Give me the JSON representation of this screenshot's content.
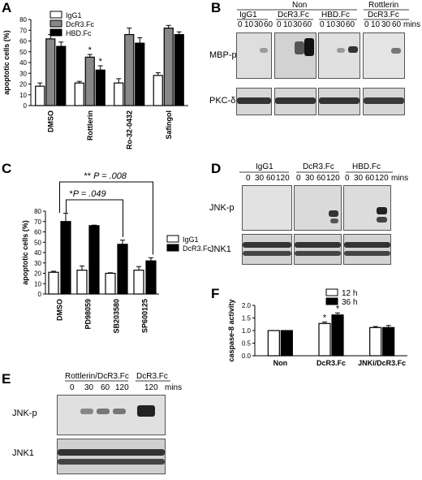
{
  "panels": {
    "A": {
      "label": "A",
      "ylabel": "apoptotic cells (%)",
      "legend": [
        "IgG1",
        "DcR3.Fc",
        "HBD.Fc"
      ],
      "yticks": [
        "0",
        "10",
        "20",
        "30",
        "40",
        "50",
        "60",
        "70",
        "80"
      ],
      "categories": [
        "DMSO",
        "Rottlerin",
        "Ro-32-0432",
        "Safingol"
      ],
      "star": "*"
    },
    "B": {
      "label": "B",
      "group_top": "Non",
      "group_right": "Rottlerin",
      "lanes": [
        "IgG1",
        "DcR3.Fc",
        "HBD.Fc",
        "DcR3.Fc"
      ],
      "times": [
        "0",
        "10",
        "30",
        "60"
      ],
      "mins": "mins",
      "rows": [
        "MBP-p",
        "PKC-δ"
      ]
    },
    "C": {
      "label": "C",
      "ylabel": "apoptotic cells (%)",
      "legend": [
        "IgG1",
        "DcR3.Fc"
      ],
      "yticks": [
        "0",
        "10",
        "20",
        "30",
        "40",
        "50",
        "60",
        "70",
        "80"
      ],
      "categories": [
        "DMSO",
        "PD98059",
        "SB203580",
        "SP600125"
      ],
      "p1_stars": "**",
      "p1_label": "P = .008",
      "p2_stars": "*",
      "p2_label": "P = .049"
    },
    "D": {
      "label": "D",
      "lanes": [
        "IgG1",
        "DcR3.Fc",
        "HBD.Fc"
      ],
      "times": [
        "0",
        "30",
        "60",
        "120"
      ],
      "mins": "mins",
      "rows": [
        "JNK-p",
        "JNK1"
      ]
    },
    "E": {
      "label": "E",
      "group1": "Rottlerin/DcR3.Fc",
      "group2": "DcR3.Fc",
      "times": [
        "0",
        "30",
        "60",
        "120"
      ],
      "time2": "120",
      "mins": "mins",
      "rows": [
        "JNK-p",
        "JNK1"
      ]
    },
    "F": {
      "label": "F",
      "ylabel": "caspase-8 activity",
      "legend": [
        "12 h",
        "36 h"
      ],
      "yticks": [
        "0.0",
        "0.5",
        "1.0",
        "1.5",
        "2.0"
      ],
      "categories": [
        "Non",
        "DcR3.Fc",
        "JNKi/DcR3.Fc"
      ],
      "star": "*"
    }
  },
  "chart_data": [
    {
      "type": "bar",
      "panel": "A",
      "categories": [
        "DMSO",
        "Rottlerin",
        "Ro-32-0432",
        "Safingol"
      ],
      "ylabel": "apoptotic cells (%)",
      "ylim": [
        0,
        80
      ],
      "series": [
        {
          "name": "IgG1",
          "values": [
            18,
            21,
            21,
            28
          ],
          "errors": [
            3,
            1.5,
            4,
            2.5
          ],
          "color": "#ffffff"
        },
        {
          "name": "DcR3.Fc",
          "values": [
            62,
            45,
            66,
            72
          ],
          "errors": [
            4,
            2.5,
            6,
            2.5
          ],
          "color": "#888888"
        },
        {
          "name": "HBD.Fc",
          "values": [
            55,
            33,
            58,
            66
          ],
          "errors": [
            4,
            4,
            5,
            2.5
          ],
          "color": "#000000"
        }
      ]
    },
    {
      "type": "bar",
      "panel": "C",
      "categories": [
        "DMSO",
        "PD98059",
        "SB203580",
        "SP600125"
      ],
      "ylabel": "apoptotic cells (%)",
      "ylim": [
        0,
        80
      ],
      "series": [
        {
          "name": "IgG1",
          "values": [
            21,
            23,
            20,
            23
          ],
          "errors": [
            1,
            4,
            0.5,
            3.5
          ],
          "color": "#ffffff"
        },
        {
          "name": "DcR3.Fc",
          "values": [
            70,
            66,
            48,
            32
          ],
          "errors": [
            8,
            0.5,
            4,
            3
          ],
          "color": "#000000"
        }
      ]
    },
    {
      "type": "bar",
      "panel": "F",
      "categories": [
        "Non",
        "DcR3.Fc",
        "JNKi/DcR3.Fc"
      ],
      "ylabel": "caspase-8 activity",
      "ylim": [
        0,
        2
      ],
      "series": [
        {
          "name": "12 h",
          "values": [
            1.0,
            1.28,
            1.12
          ],
          "errors": [
            0,
            0.06,
            0.04
          ],
          "color": "#ffffff"
        },
        {
          "name": "36 h",
          "values": [
            1.0,
            1.62,
            1.12
          ],
          "errors": [
            0,
            0.08,
            0.08
          ],
          "color": "#000000"
        }
      ]
    }
  ]
}
